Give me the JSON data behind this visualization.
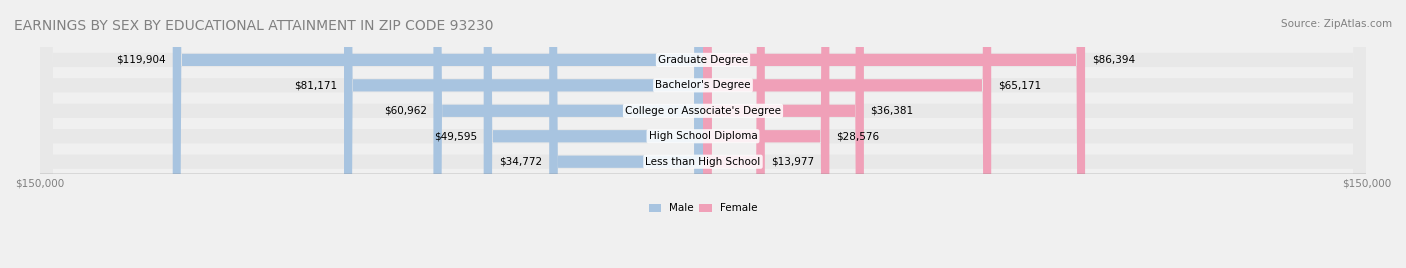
{
  "title": "EARNINGS BY SEX BY EDUCATIONAL ATTAINMENT IN ZIP CODE 93230",
  "source": "Source: ZipAtlas.com",
  "categories": [
    "Less than High School",
    "High School Diploma",
    "College or Associate's Degree",
    "Bachelor's Degree",
    "Graduate Degree"
  ],
  "male_values": [
    34772,
    49595,
    60962,
    81171,
    119904
  ],
  "female_values": [
    13977,
    28576,
    36381,
    65171,
    86394
  ],
  "male_color": "#a8c4e0",
  "female_color": "#f0a0b8",
  "male_label": "Male",
  "female_label": "Female",
  "max_value": 150000,
  "bg_color": "#f0f0f0",
  "bar_bg_color": "#e8e8e8",
  "title_fontsize": 10,
  "source_fontsize": 7.5,
  "label_fontsize": 7.5,
  "axis_label_fontsize": 7.5
}
